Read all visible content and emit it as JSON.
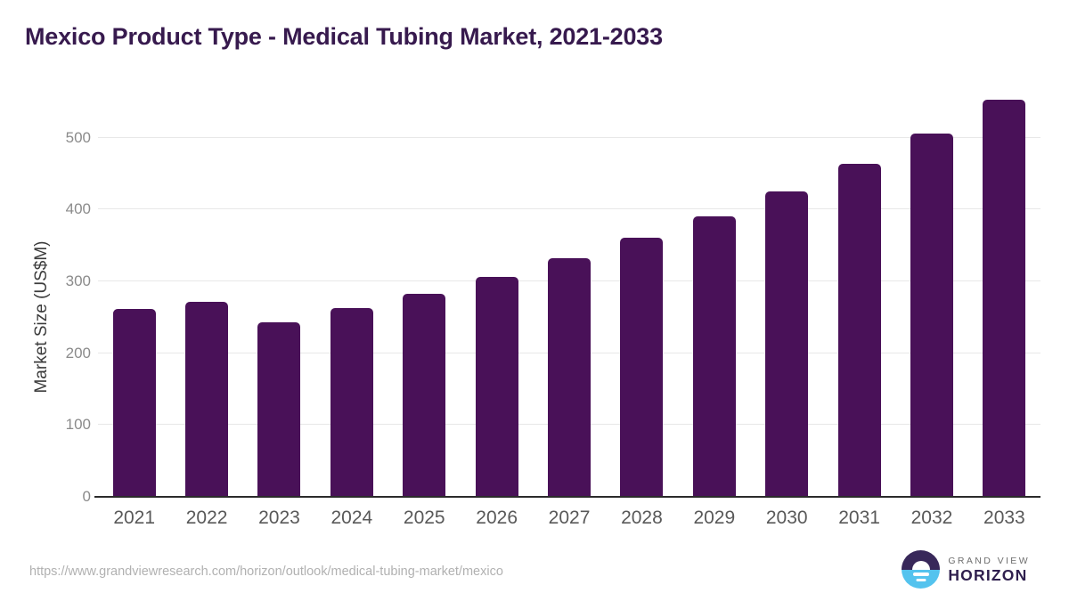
{
  "title": "Mexico Product Type - Medical Tubing Market, 2021-2033",
  "chart_data": {
    "type": "bar",
    "title": "Mexico Product Type - Medical Tubing Market, 2021-2033",
    "categories": [
      "2021",
      "2022",
      "2023",
      "2024",
      "2025",
      "2026",
      "2027",
      "2028",
      "2029",
      "2030",
      "2031",
      "2032",
      "2033"
    ],
    "values": [
      261,
      271,
      243,
      263,
      283,
      306,
      332,
      361,
      390,
      425,
      463,
      506,
      553
    ],
    "xlabel": "",
    "ylabel": "Market Size (US$M)",
    "ylim": [
      0,
      560
    ],
    "yticks": [
      0,
      100,
      200,
      300,
      400,
      500
    ],
    "grid": "horizontal-light",
    "legend": "none",
    "bar_color": "#491158"
  },
  "footer": {
    "source_url": "https://www.grandviewresearch.com/horizon/outlook/medical-tubing-market/mexico",
    "logo": {
      "line1": "GRAND VIEW",
      "line2": "HORIZON"
    }
  },
  "colors": {
    "background": "#ffffff",
    "title_text": "#371a4e",
    "bar": "#491158",
    "gridline": "#e8e8e8",
    "axis_line": "#2b2b2b",
    "y_tick_text": "#8b8b8b",
    "x_tick_text": "#595959",
    "y_axis_title_text": "#3c3c3c",
    "url_text": "#b1b1b1",
    "logo_purple": "#38285a",
    "logo_blue": "#54c3ee",
    "logo_horizon_text": "#2f1f4e",
    "logo_grandview_text": "#6e6e6e"
  }
}
